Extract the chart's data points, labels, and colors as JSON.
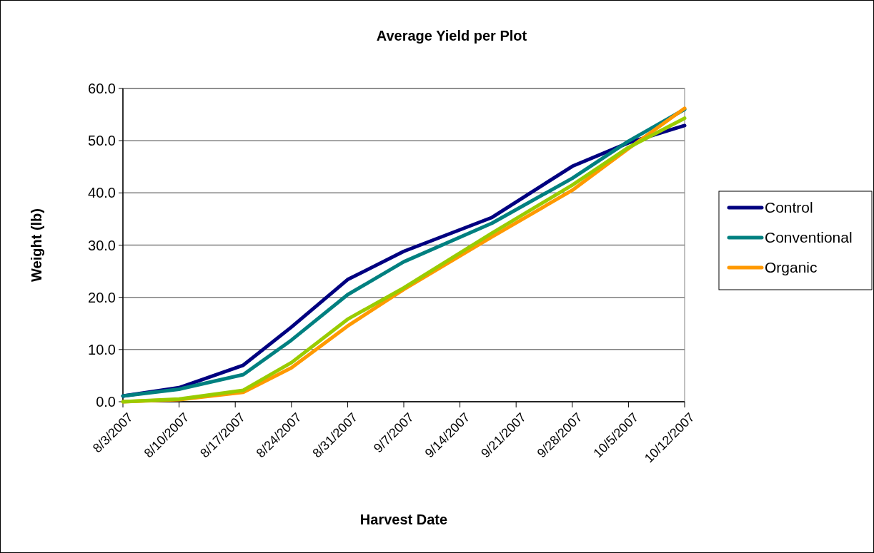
{
  "chart_data": {
    "type": "line",
    "title": "Average Yield per Plot",
    "xlabel": "Harvest Date",
    "ylabel": "Weight (lb)",
    "x": [
      "2007-08-03",
      "2007-08-10",
      "2007-08-18",
      "2007-08-24",
      "2007-08-31",
      "2007-09-07",
      "2007-09-18",
      "2007-09-28",
      "2007-10-05",
      "2007-10-12"
    ],
    "series": [
      {
        "name": "Control",
        "color": "#000080",
        "values": [
          1.1,
          2.7,
          7.0,
          14.3,
          23.4,
          28.8,
          35.3,
          45.1,
          49.6,
          52.9
        ]
      },
      {
        "name": "Conventional",
        "color": "#008080",
        "values": [
          1.1,
          2.4,
          5.2,
          11.8,
          20.5,
          26.8,
          34.2,
          42.8,
          49.9,
          56.0
        ]
      },
      {
        "name": "Organic",
        "color": "#ff9900",
        "values": [
          0,
          0.4,
          1.8,
          6.5,
          14.5,
          21.5,
          31.6,
          40.5,
          48.5,
          56.2
        ]
      },
      {
        "color": "#99cc00",
        "values": [
          0,
          0.5,
          2.2,
          7.5,
          15.8,
          21.8,
          32.3,
          41.5,
          48.7,
          54.3
        ]
      }
    ],
    "xlim": [
      "2007-08-03",
      "2007-10-12"
    ],
    "xticks": [
      {
        "value": "2007-08-03",
        "label": "8/3/2007"
      },
      {
        "value": "2007-08-10",
        "label": "8/10/2007"
      },
      {
        "value": "2007-08-17",
        "label": "8/17/2007"
      },
      {
        "value": "2007-08-24",
        "label": "8/24/2007"
      },
      {
        "value": "2007-08-31",
        "label": "8/31/2007"
      },
      {
        "value": "2007-09-07",
        "label": "9/7/2007"
      },
      {
        "value": "2007-09-14",
        "label": "9/14/2007"
      },
      {
        "value": "2007-09-21",
        "label": "9/21/2007"
      },
      {
        "value": "2007-09-28",
        "label": "9/28/2007"
      },
      {
        "value": "2007-10-05",
        "label": "10/5/2007"
      },
      {
        "value": "2007-10-12",
        "label": "10/12/2007"
      }
    ],
    "ylim": [
      0,
      60
    ],
    "yticks": [
      {
        "value": 0,
        "label": "0.0"
      },
      {
        "value": 10,
        "label": "10.0"
      },
      {
        "value": 20,
        "label": "20.0"
      },
      {
        "value": 30,
        "label": "30.0"
      },
      {
        "value": 40,
        "label": "40.0"
      },
      {
        "value": 50,
        "label": "50.0"
      },
      {
        "value": 60,
        "label": "60.0"
      }
    ],
    "grid": "y",
    "legend": "right",
    "marker": "none",
    "line_style": "solid"
  }
}
